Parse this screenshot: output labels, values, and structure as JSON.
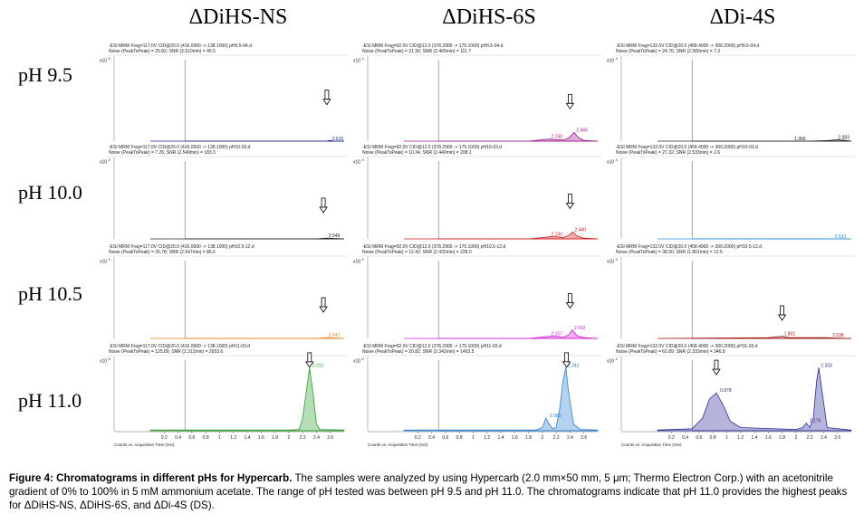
{
  "columns": [
    "ΔDiHS-NS",
    "ΔDiHS-6S",
    "ΔDi-4S"
  ],
  "rows": [
    "pH 9.5",
    "pH 10.0",
    "pH 10.5",
    "pH 11.0"
  ],
  "multiplier": "x10",
  "exponents": [
    [
      "5",
      "4",
      "4"
    ],
    [
      "5",
      "4",
      "4"
    ],
    [
      "5",
      "4",
      "4"
    ],
    [
      "5",
      "4",
      "4"
    ]
  ],
  "x_axis_label": "Counts vs. Acquisition Time (min)",
  "x_ticks": [
    "0.2",
    "0.4",
    "0.6",
    "0.8",
    "1",
    "1.2",
    "1.4",
    "1.6",
    "1.8",
    "2",
    "2.2",
    "2.4",
    "2.6"
  ],
  "colors": {
    "r0": [
      "#1a2a8c",
      "#9c1a8c",
      "#222222"
    ],
    "r1": [
      "#222222",
      "#d11a1a",
      "#2a8fe0"
    ],
    "r2": [
      "#e8801a",
      "#d11ad1",
      "#a01a1a"
    ],
    "r3": [
      "#2aa02a",
      "#2a7fd6",
      "#2a2a9a"
    ]
  },
  "headers": [
    [
      {
        "l1": "-ESI MRM Frag=117.0V CID@20.0 (416.0000 -> 138.1000) pH9.5-04.d",
        "l2": "Noise (PeakToPeak) = 25.82; SNR (2.610min) = 46.5"
      },
      {
        "l1": "-ESI MRM Frag=92.0V CID@12.0 (378.2900 -> 175.1000) pH9.5-04.d",
        "l2": "Noise (PeakToPeak) = 21.30; SNR (2.465min) = 111.7"
      },
      {
        "l1": "-ESI MRM Frag=132.0V CID@20.0 (458.4000 -> 300.2000) pH9.5-04.d",
        "l2": "Noise (PeakToPeak) = 24.76; SNR (2.583min) = 7.3"
      }
    ],
    [
      {
        "l1": "-ESI MRM Frag=117.0V CID@20.0 (416.0000 -> 138.1000) pH10-03.d",
        "l2": "Noise (PeakToPeak) = 7.26; SNR (2.549min) = 183.3"
      },
      {
        "l1": "-ESI MRM Frag=92.0V CID@12.0 (378.2900 -> 175.1000) pH10-03.d",
        "l2": "Noise (PeakToPeak) = 10.34; SNR (2.440min) = 208.1"
      },
      {
        "l1": "-ESI MRM Frag=132.0V CID@20.0 (458.4000 -> 300.2000) pH10-03.d",
        "l2": "Noise (PeakToPeak) = 27.32; SNR (2.533min) = 2.6"
      }
    ],
    [
      {
        "l1": "-ESI MRM Frag=117.0V CID@20.0 (416.0000 -> 138.1000) pH10.5-12.d",
        "l2": "Noise (PeakToPeak) = 25.78; SNR (2.547min) = 86.6"
      },
      {
        "l1": "-ESI MRM Frag=92.0V CID@12.0 (378.2900 -> 175.1000) pH10.5-12.d",
        "l2": "Noise (PeakToPeak) = 12.42; SNR (2.432min) = 228.0"
      },
      {
        "l1": "-ESI MRM Frag=132.0V CID@20.0 (458.4000 -> 300.2000) pH10.5-12.d",
        "l2": "Noise (PeakToPeak) = 38.50; SNR (1.801min) = 12.5"
      }
    ],
    [
      {
        "l1": "-ESI MRM Frag=117.0V CID@20.0 (416.0000 -> 138.1000) pH11-03.d",
        "l2": "Noise (PeakToPeak) = 125.80; SNR (2.312min) = 2653.6"
      },
      {
        "l1": "-ESI MRM Frag=92.0V CID@12.0 (378.2900 -> 175.1000) pH11-03.d",
        "l2": "Noise (PeakToPeak) = 20.82; SNR (2.342min) = 1493.5"
      },
      {
        "l1": "-ESI MRM Frag=132.0V CID@20.0 (458.4000 -> 300.2000) pH11-03.d",
        "l2": "Noise (PeakToPeak) = 62.89; SNR (2.333min) = 346.8"
      }
    ]
  ],
  "chart_data": [
    {
      "type": "line",
      "title": "ΔDiHS-NS pH 9.5",
      "xlabel": "Counts vs. Acquisition Time (min)",
      "xlim": [
        0,
        2.8
      ],
      "ylim": [
        0,
        1
      ],
      "series": [
        {
          "name": "trace",
          "x": [
            0,
            0.5,
            2.4,
            2.55,
            2.6,
            2.65,
            2.8
          ],
          "values": [
            0,
            0,
            0,
            0,
            0.01,
            0,
            0
          ]
        }
      ],
      "peak_labels": [
        {
          "x": 2.6,
          "y": 0,
          "text": "2.610"
        }
      ],
      "arrow_x": 2.55,
      "arrow_y": 0.6
    },
    {
      "type": "line",
      "title": "ΔDiHS-6S pH 9.5",
      "xlabel": "Counts vs. Acquisition Time (min)",
      "xlim": [
        0,
        2.8
      ],
      "ylim": [
        0,
        1
      ],
      "series": [
        {
          "name": "trace",
          "x": [
            0,
            1.8,
            2.0,
            2.1,
            2.2,
            2.3,
            2.35,
            2.4,
            2.46,
            2.52,
            2.6,
            2.8
          ],
          "values": [
            0,
            0,
            0.02,
            0.03,
            0.02,
            0.02,
            0.03,
            0.06,
            0.12,
            0.05,
            0.01,
            0
          ]
        }
      ],
      "peak_labels": [
        {
          "x": 2.465,
          "y": 0.12,
          "text": "2.465"
        },
        {
          "x": 2.1,
          "y": 0.03,
          "text": "2.150"
        }
      ],
      "arrow_x": 2.4,
      "arrow_y": 0.55
    },
    {
      "type": "line",
      "title": "ΔDi-4S pH 9.5",
      "xlabel": "Counts vs. Acquisition Time (min)",
      "xlim": [
        0,
        2.8
      ],
      "ylim": [
        0,
        1
      ],
      "series": [
        {
          "name": "trace",
          "x": [
            0,
            1.2,
            1.8,
            2.2,
            2.5,
            2.58,
            2.7,
            2.8
          ],
          "values": [
            0,
            0,
            0,
            0,
            0.01,
            0.02,
            0.01,
            0
          ]
        }
      ],
      "peak_labels": [
        {
          "x": 2.583,
          "y": 0.02,
          "text": "2.583"
        },
        {
          "x": 1.95,
          "y": 0,
          "text": "1.966"
        }
      ]
    },
    {
      "type": "line",
      "title": "ΔDiHS-NS pH 10.0",
      "xlabel": "Counts vs. Acquisition Time (min)",
      "xlim": [
        0,
        2.8
      ],
      "ylim": [
        0,
        1
      ],
      "series": [
        {
          "name": "trace",
          "x": [
            0,
            0.5,
            2.4,
            2.55,
            2.8
          ],
          "values": [
            0,
            0,
            0,
            0.01,
            0
          ]
        }
      ],
      "peak_labels": [
        {
          "x": 2.549,
          "y": 0.01,
          "text": "2.549"
        }
      ],
      "arrow_x": 2.5,
      "arrow_y": 0.5
    },
    {
      "type": "line",
      "title": "ΔDiHS-6S pH 10.0",
      "xlabel": "Counts vs. Acquisition Time (min)",
      "xlim": [
        0,
        2.8
      ],
      "ylim": [
        0,
        1
      ],
      "series": [
        {
          "name": "trace",
          "x": [
            0,
            1.8,
            2.0,
            2.1,
            2.2,
            2.3,
            2.38,
            2.44,
            2.5,
            2.6,
            2.8
          ],
          "values": [
            0,
            0,
            0.02,
            0.03,
            0.03,
            0.02,
            0.05,
            0.1,
            0.04,
            0.01,
            0
          ]
        }
      ],
      "peak_labels": [
        {
          "x": 2.44,
          "y": 0.1,
          "text": "2.440"
        },
        {
          "x": 2.1,
          "y": 0.03,
          "text": "2.150"
        }
      ],
      "arrow_x": 2.4,
      "arrow_y": 0.55
    },
    {
      "type": "line",
      "title": "ΔDi-4S pH 10.0",
      "xlabel": "Counts vs. Acquisition Time (min)",
      "xlim": [
        0,
        2.8
      ],
      "ylim": [
        0,
        1
      ],
      "series": [
        {
          "name": "trace",
          "x": [
            0,
            2.4,
            2.53,
            2.8
          ],
          "values": [
            0,
            0,
            0,
            0
          ]
        }
      ],
      "peak_labels": [
        {
          "x": 2.533,
          "y": 0,
          "text": "2.533"
        }
      ]
    },
    {
      "type": "line",
      "title": "ΔDiHS-NS pH 10.5",
      "xlabel": "Counts vs. Acquisition Time (min)",
      "xlim": [
        0,
        2.8
      ],
      "ylim": [
        0,
        1
      ],
      "series": [
        {
          "name": "trace",
          "x": [
            0,
            0.5,
            2.4,
            2.55,
            2.8
          ],
          "values": [
            0,
            0,
            0,
            0.01,
            0
          ]
        }
      ],
      "peak_labels": [
        {
          "x": 2.547,
          "y": 0.01,
          "text": "2.547"
        }
      ],
      "arrow_x": 2.5,
      "arrow_y": 0.5
    },
    {
      "type": "line",
      "title": "ΔDiHS-6S pH 10.5",
      "xlabel": "Counts vs. Acquisition Time (min)",
      "xlim": [
        0,
        2.8
      ],
      "ylim": [
        0,
        1
      ],
      "series": [
        {
          "name": "trace",
          "x": [
            0,
            1.8,
            2.0,
            2.1,
            2.2,
            2.3,
            2.38,
            2.43,
            2.5,
            2.6,
            2.8
          ],
          "values": [
            0,
            0,
            0.02,
            0.03,
            0.03,
            0.02,
            0.05,
            0.12,
            0.04,
            0.01,
            0
          ]
        }
      ],
      "peak_labels": [
        {
          "x": 2.432,
          "y": 0.12,
          "text": "2.432"
        },
        {
          "x": 2.1,
          "y": 0.03,
          "text": "2.157"
        }
      ],
      "arrow_x": 2.4,
      "arrow_y": 0.55
    },
    {
      "type": "line",
      "title": "ΔDi-4S pH 10.5",
      "xlabel": "Counts vs. Acquisition Time (min)",
      "xlim": [
        0,
        2.8
      ],
      "ylim": [
        0,
        1
      ],
      "series": [
        {
          "name": "trace",
          "x": [
            0,
            1.6,
            1.8,
            1.9,
            2.4,
            2.8
          ],
          "values": [
            0,
            0.01,
            0.03,
            0.01,
            0.01,
            0
          ]
        }
      ],
      "peak_labels": [
        {
          "x": 1.801,
          "y": 0.03,
          "text": "1.801"
        },
        {
          "x": 2.5,
          "y": 0.01,
          "text": "2.538"
        }
      ],
      "arrow_x": 1.8,
      "arrow_y": 0.4
    },
    {
      "type": "line",
      "title": "ΔDiHS-NS pH 11.0",
      "xlabel": "Counts vs. Acquisition Time (min)",
      "xlim": [
        0,
        2.8
      ],
      "ylim": [
        0,
        1
      ],
      "series": [
        {
          "name": "trace",
          "x": [
            0,
            2.0,
            2.15,
            2.2,
            2.25,
            2.3,
            2.35,
            2.4,
            2.45,
            2.8
          ],
          "values": [
            0.01,
            0.01,
            0.02,
            0.2,
            0.6,
            1.0,
            0.6,
            0.1,
            0.02,
            0.01
          ]
        }
      ],
      "peak_labels": [
        {
          "x": 2.312,
          "y": 1.0,
          "text": "2.312"
        }
      ],
      "arrow_x": 2.3,
      "arrow_y": 1.05
    },
    {
      "type": "line",
      "title": "ΔDiHS-6S pH 11.0",
      "xlabel": "Counts vs. Acquisition Time (min)",
      "xlim": [
        0,
        2.8
      ],
      "ylim": [
        0,
        1
      ],
      "series": [
        {
          "name": "trace",
          "x": [
            0,
            1.9,
            2.0,
            2.05,
            2.1,
            2.15,
            2.2,
            2.25,
            2.3,
            2.34,
            2.38,
            2.45,
            2.55,
            2.8
          ],
          "values": [
            0.01,
            0.01,
            0.05,
            0.2,
            0.1,
            0.03,
            0.05,
            0.35,
            0.8,
            1.0,
            0.6,
            0.1,
            0.02,
            0.01
          ]
        }
      ],
      "peak_labels": [
        {
          "x": 2.342,
          "y": 1.0,
          "text": "2.342"
        },
        {
          "x": 2.08,
          "y": 0.2,
          "text": "2.083"
        }
      ],
      "arrow_x": 2.35,
      "arrow_y": 1.05
    },
    {
      "type": "line",
      "title": "ΔDi-4S pH 11.0",
      "xlabel": "Counts vs. Acquisition Time (min)",
      "xlim": [
        0,
        2.8
      ],
      "ylim": [
        0,
        1
      ],
      "series": [
        {
          "name": "trace",
          "x": [
            0,
            0.5,
            0.65,
            0.75,
            0.85,
            0.95,
            1.05,
            1.2,
            2.0,
            2.1,
            2.15,
            2.2,
            2.25,
            2.3,
            2.33,
            2.38,
            2.45,
            2.8
          ],
          "values": [
            0.01,
            0.03,
            0.2,
            0.5,
            0.6,
            0.4,
            0.15,
            0.05,
            0.02,
            0.05,
            0.12,
            0.05,
            0.2,
            0.8,
            1.0,
            0.6,
            0.05,
            0.01
          ]
        }
      ],
      "peak_labels": [
        {
          "x": 0.878,
          "y": 0.6,
          "text": "0.878"
        },
        {
          "x": 2.333,
          "y": 1.0,
          "text": "2.333"
        },
        {
          "x": 2.17,
          "y": 0.12,
          "text": "2.176"
        }
      ],
      "arrow_x": 0.85,
      "arrow_y": 0.95
    }
  ],
  "caption": {
    "bold": "Figure 4: Chromatograms in different pHs for Hypercarb.",
    "text": " The samples were analyzed by using Hypercarb (2.0 mm×50 mm, 5 μm; Thermo Electron Corp.) with an acetonitrile gradient of 0% to 100% in 5 mM ammonium acetate. The range of pH tested was between pH 9.5 and pH 11.0. The chromatograms indicate that pH 11.0 provides the highest peaks for ΔDiHS-NS, ΔDiHS-6S, and ΔDi-4S (DS)."
  }
}
